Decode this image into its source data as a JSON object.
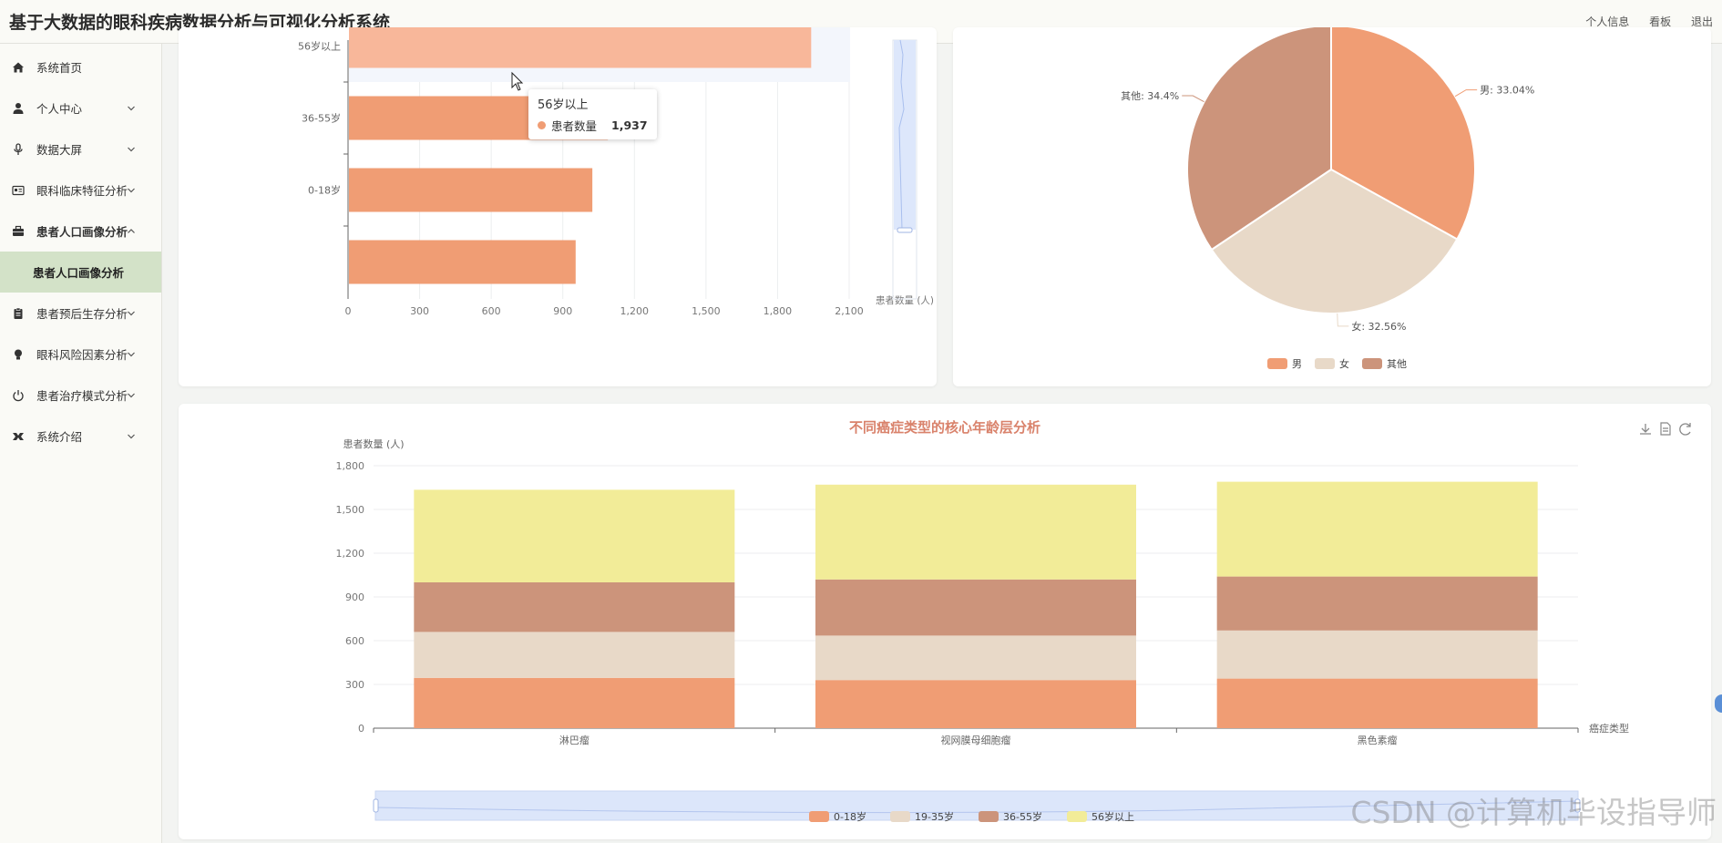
{
  "app_title": "基于大数据的眼科疾病数据分析与可视化分析系统",
  "header_links": [
    "个人信息",
    "看板",
    "退出"
  ],
  "sidebar": {
    "items": [
      {
        "label": "系统首页",
        "icon": "home-icon",
        "has_children": false
      },
      {
        "label": "个人中心",
        "icon": "user-icon",
        "has_children": true,
        "expanded": false
      },
      {
        "label": "数据大屏",
        "icon": "microphone-icon",
        "has_children": true,
        "expanded": false
      },
      {
        "label": "眼科临床特征分析",
        "icon": "id-card-icon",
        "has_children": true,
        "expanded": false
      },
      {
        "label": "患者人口画像分析",
        "icon": "briefcase-icon",
        "has_children": true,
        "expanded": true,
        "children": [
          {
            "label": "患者人口画像分析",
            "active": true
          }
        ]
      },
      {
        "label": "患者预后生存分析",
        "icon": "clipboard-icon",
        "has_children": true,
        "expanded": false
      },
      {
        "label": "眼科风险因素分析",
        "icon": "lightbulb-icon",
        "has_children": true,
        "expanded": false
      },
      {
        "label": "患者治疗模式分析",
        "icon": "power-icon",
        "has_children": true,
        "expanded": false
      },
      {
        "label": "系统介绍",
        "icon": "tools-icon",
        "has_children": true,
        "expanded": false
      }
    ]
  },
  "colors": {
    "bar": "#f09d74",
    "bar_highlight": "#f8b79a",
    "pie_male": "#f09d74",
    "pie_female": "#e8d9c8",
    "pie_other": "#cc947b",
    "age_0_18": "#f09d74",
    "age_19_35": "#e8d9c8",
    "age_36_55": "#cc947b",
    "age_56_plus": "#f2ec98",
    "title_accent": "#d9826b",
    "sidebar_active": "#d3e2c8"
  },
  "tooltip": {
    "title": "56岁以上",
    "series_name": "患者数量",
    "value": "1,937"
  },
  "toolbox_icons": [
    "download-icon",
    "data-view-icon",
    "restore-icon"
  ],
  "watermark": "CSDN @计算机毕设指导师",
  "chart_data": [
    {
      "type": "bar",
      "orientation": "horizontal",
      "categories": [
        "",
        "0-18岁",
        "36-55岁",
        "56岁以上"
      ],
      "values": [
        950,
        1020,
        1085,
        1937
      ],
      "x_ticks": [
        "0",
        "300",
        "600",
        "900",
        "1,200",
        "1,500",
        "1,800",
        "2,100"
      ],
      "xlim": [
        0,
        2100
      ],
      "xlabel": "患者数量 (人)",
      "highlighted_category": "56岁以上"
    },
    {
      "type": "pie",
      "slices": [
        {
          "name": "男",
          "value": 33.04,
          "label": "男: 33.04%"
        },
        {
          "name": "女",
          "value": 32.56,
          "label": "女: 32.56%"
        },
        {
          "name": "其他",
          "value": 34.4,
          "label": "其他: 34.4%"
        }
      ],
      "legend": [
        "男",
        "女",
        "其他"
      ],
      "legend_position": "bottom"
    },
    {
      "type": "bar",
      "stacked": true,
      "title": "不同癌症类型的核心年龄层分析",
      "categories": [
        "淋巴瘤",
        "视网膜母细胞瘤",
        "黑色素瘤"
      ],
      "series": [
        {
          "name": "0-18岁",
          "values": [
            345,
            330,
            340
          ]
        },
        {
          "name": "19-35岁",
          "values": [
            315,
            305,
            330
          ]
        },
        {
          "name": "36-55岁",
          "values": [
            340,
            385,
            370
          ]
        },
        {
          "name": "56岁以上",
          "values": [
            635,
            650,
            650
          ]
        }
      ],
      "ylabel": "患者数量 (人)",
      "xlabel": "癌症类型",
      "y_ticks": [
        "0",
        "300",
        "600",
        "900",
        "1,200",
        "1,500",
        "1,800"
      ],
      "ylim": [
        0,
        1800
      ],
      "legend_position": "bottom"
    }
  ]
}
